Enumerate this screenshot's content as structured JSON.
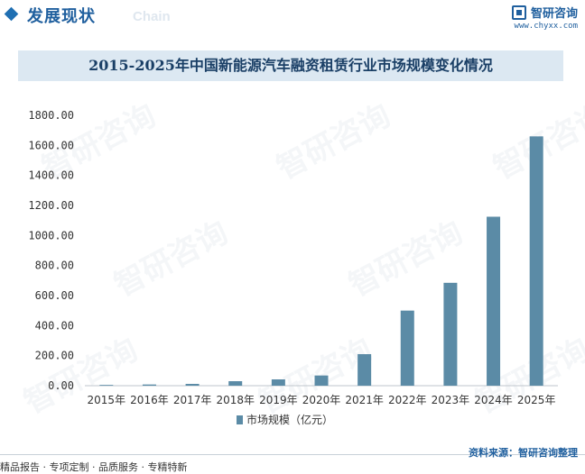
{
  "header": {
    "section_title": "发展现状",
    "section_sub": "Chain",
    "brand_name": "智研咨询",
    "brand_url": "www.chyxx.com"
  },
  "watermark_text": "智研咨询",
  "chart_data": {
    "type": "bar",
    "title": "2015-2025年中国新能源汽车融资租赁行业市场规模变化情况",
    "categories": [
      "2015年",
      "2016年",
      "2017年",
      "2018年",
      "2019年",
      "2020年",
      "2021年",
      "2022年",
      "2023年",
      "2024年",
      "2025年"
    ],
    "series": [
      {
        "name": "市场规模（亿元）",
        "color": "#5b8ba6",
        "values": [
          5,
          8,
          12,
          30,
          42,
          68,
          210,
          500,
          685,
          1125,
          1660
        ]
      }
    ],
    "ylim": [
      0,
      1800
    ],
    "yticks": [
      "0.00",
      "200.00",
      "400.00",
      "600.00",
      "800.00",
      "1000.00",
      "1200.00",
      "1400.00",
      "1600.00",
      "1800.00"
    ],
    "grid": false,
    "legend_position": "bottom"
  },
  "footer": {
    "left": "精品报告 · 专项定制 · 品质服务 · 专精特新",
    "right": "资料来源：智研咨询整理"
  }
}
